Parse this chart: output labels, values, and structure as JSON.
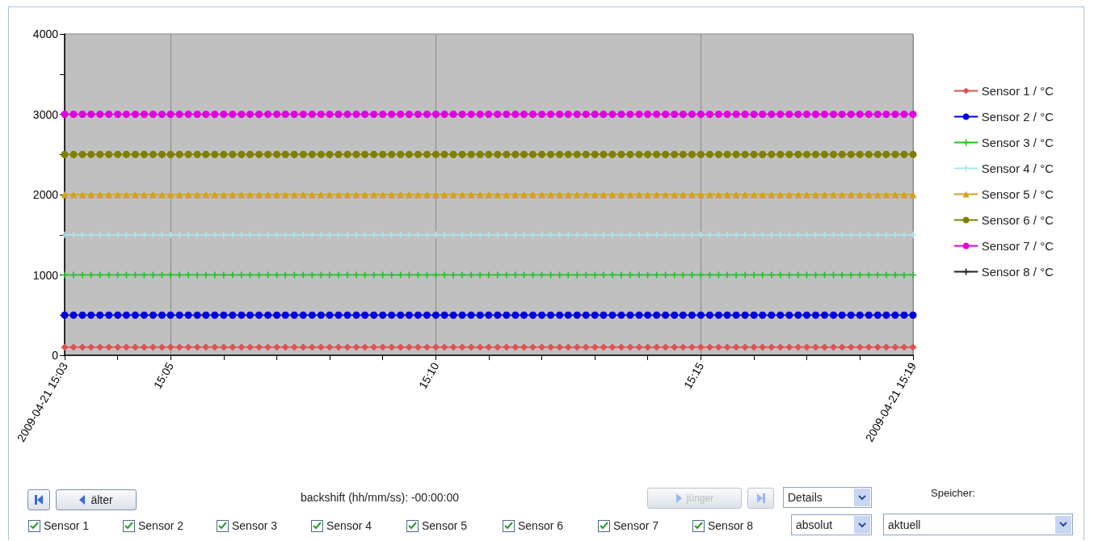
{
  "chart_data": {
    "type": "line",
    "x": [
      15.05,
      15.0528,
      15.0556,
      15.0583,
      15.0611,
      15.0639,
      15.0667,
      15.0694,
      15.0722,
      15.075,
      15.0778,
      15.0806,
      15.0833,
      15.0861,
      15.0889,
      15.0917,
      15.0944,
      15.0972,
      15.1,
      15.1028,
      15.1056,
      15.1083,
      15.1111,
      15.1139,
      15.1167,
      15.1194,
      15.1222,
      15.125,
      15.1278,
      15.1306,
      15.1333,
      15.1361,
      15.1389,
      15.1417,
      15.1444,
      15.1472,
      15.15,
      15.1528,
      15.1556,
      15.1583,
      15.1611,
      15.1639,
      15.1667,
      15.1694,
      15.1722,
      15.175,
      15.1778,
      15.1806,
      15.1833,
      15.1861,
      15.1889,
      15.1917,
      15.1944,
      15.1972,
      15.2,
      15.2028,
      15.2056,
      15.2083,
      15.2111,
      15.2139,
      15.2167,
      15.2194,
      15.2222,
      15.225,
      15.2278,
      15.2306,
      15.2333,
      15.2361,
      15.2389,
      15.2417,
      15.2444,
      15.2472,
      15.25,
      15.2528,
      15.2556,
      15.2583,
      15.2611,
      15.2639,
      15.2667,
      15.2694,
      15.2722,
      15.275,
      15.2778,
      15.2806,
      15.2833,
      15.2861,
      15.2889,
      15.2917,
      15.2944,
      15.2972,
      15.3,
      15.3028,
      15.3056,
      15.3083,
      15.3111,
      15.3139,
      15.3167
    ],
    "series": [
      {
        "name": "Sensor 1 / °C",
        "color": "#e05050",
        "marker": "diamond",
        "values": [
          100,
          100,
          100,
          100,
          100,
          100,
          100,
          100,
          100,
          100,
          100,
          100,
          100,
          100,
          100,
          100,
          100,
          100,
          100,
          100,
          100,
          100,
          100,
          100,
          100,
          100,
          100,
          100,
          100,
          100,
          100,
          100,
          100,
          100,
          100,
          100,
          100,
          100,
          100,
          100,
          100,
          100,
          100,
          100,
          100,
          100,
          100,
          100,
          100,
          100,
          100,
          100,
          100,
          100,
          100,
          100,
          100,
          100,
          100,
          100,
          100,
          100,
          100,
          100,
          100,
          100,
          100,
          100,
          100,
          100,
          100,
          100,
          100,
          100,
          100,
          100,
          100,
          100,
          100,
          100,
          100,
          100,
          100,
          100,
          100,
          100,
          100,
          100,
          100,
          100,
          100,
          100,
          100,
          100,
          100,
          100,
          100
        ]
      },
      {
        "name": "Sensor 2 / °C",
        "color": "#0000e0",
        "marker": "circle",
        "values": [
          500,
          500,
          500,
          500,
          500,
          500,
          500,
          500,
          500,
          500,
          500,
          500,
          500,
          500,
          500,
          500,
          500,
          500,
          500,
          500,
          500,
          500,
          500,
          500,
          500,
          500,
          500,
          500,
          500,
          500,
          500,
          500,
          500,
          500,
          500,
          500,
          500,
          500,
          500,
          500,
          500,
          500,
          500,
          500,
          500,
          500,
          500,
          500,
          500,
          500,
          500,
          500,
          500,
          500,
          500,
          500,
          500,
          500,
          500,
          500,
          500,
          500,
          500,
          500,
          500,
          500,
          500,
          500,
          500,
          500,
          500,
          500,
          500,
          500,
          500,
          500,
          500,
          500,
          500,
          500,
          500,
          500,
          500,
          500,
          500,
          500,
          500,
          500,
          500,
          500,
          500,
          500,
          500,
          500,
          500,
          500,
          500
        ]
      },
      {
        "name": "Sensor 3 / °C",
        "color": "#20c020",
        "marker": "cross",
        "values": [
          1000,
          1000,
          1000,
          1000,
          1000,
          1000,
          1000,
          1000,
          1000,
          1000,
          1000,
          1000,
          1000,
          1000,
          1000,
          1000,
          1000,
          1000,
          1000,
          1000,
          1000,
          1000,
          1000,
          1000,
          1000,
          1000,
          1000,
          1000,
          1000,
          1000,
          1000,
          1000,
          1000,
          1000,
          1000,
          1000,
          1000,
          1000,
          1000,
          1000,
          1000,
          1000,
          1000,
          1000,
          1000,
          1000,
          1000,
          1000,
          1000,
          1000,
          1000,
          1000,
          1000,
          1000,
          1000,
          1000,
          1000,
          1000,
          1000,
          1000,
          1000,
          1000,
          1000,
          1000,
          1000,
          1000,
          1000,
          1000,
          1000,
          1000,
          1000,
          1000,
          1000,
          1000,
          1000,
          1000,
          1000,
          1000,
          1000,
          1000,
          1000,
          1000,
          1000,
          1000,
          1000,
          1000,
          1000,
          1000,
          1000,
          1000,
          1000,
          1000,
          1000,
          1000,
          1000,
          1000,
          1000
        ]
      },
      {
        "name": "Sensor 4 / °C",
        "color": "#a8e8f0",
        "marker": "cross",
        "values": [
          1500,
          1500,
          1500,
          1500,
          1500,
          1500,
          1500,
          1500,
          1500,
          1500,
          1500,
          1500,
          1500,
          1500,
          1500,
          1500,
          1500,
          1500,
          1500,
          1500,
          1500,
          1500,
          1500,
          1500,
          1500,
          1500,
          1500,
          1500,
          1500,
          1500,
          1500,
          1500,
          1500,
          1500,
          1500,
          1500,
          1500,
          1500,
          1500,
          1500,
          1500,
          1500,
          1500,
          1500,
          1500,
          1500,
          1500,
          1500,
          1500,
          1500,
          1500,
          1500,
          1500,
          1500,
          1500,
          1500,
          1500,
          1500,
          1500,
          1500,
          1500,
          1500,
          1500,
          1500,
          1500,
          1500,
          1500,
          1500,
          1500,
          1500,
          1500,
          1500,
          1500,
          1500,
          1500,
          1500,
          1500,
          1500,
          1500,
          1500,
          1500,
          1500,
          1500,
          1500,
          1500,
          1500,
          1500,
          1500,
          1500,
          1500,
          1500,
          1500,
          1500,
          1500,
          1500,
          1500,
          1500
        ]
      },
      {
        "name": "Sensor 5 / °C",
        "color": "#d4a020",
        "marker": "triangle",
        "values": [
          2000,
          2000,
          2000,
          2000,
          2000,
          2000,
          2000,
          2000,
          2000,
          2000,
          2000,
          2000,
          2000,
          2000,
          2000,
          2000,
          2000,
          2000,
          2000,
          2000,
          2000,
          2000,
          2000,
          2000,
          2000,
          2000,
          2000,
          2000,
          2000,
          2000,
          2000,
          2000,
          2000,
          2000,
          2000,
          2000,
          2000,
          2000,
          2000,
          2000,
          2000,
          2000,
          2000,
          2000,
          2000,
          2000,
          2000,
          2000,
          2000,
          2000,
          2000,
          2000,
          2000,
          2000,
          2000,
          2000,
          2000,
          2000,
          2000,
          2000,
          2000,
          2000,
          2000,
          2000,
          2000,
          2000,
          2000,
          2000,
          2000,
          2000,
          2000,
          2000,
          2000,
          2000,
          2000,
          2000,
          2000,
          2000,
          2000,
          2000,
          2000,
          2000,
          2000,
          2000,
          2000,
          2000,
          2000,
          2000,
          2000,
          2000,
          2000,
          2000,
          2000,
          2000,
          2000,
          2000,
          2000
        ]
      },
      {
        "name": "Sensor 6 / °C",
        "color": "#808000",
        "marker": "circle",
        "values": [
          2500,
          2500,
          2500,
          2500,
          2500,
          2500,
          2500,
          2500,
          2500,
          2500,
          2500,
          2500,
          2500,
          2500,
          2500,
          2500,
          2500,
          2500,
          2500,
          2500,
          2500,
          2500,
          2500,
          2500,
          2500,
          2500,
          2500,
          2500,
          2500,
          2500,
          2500,
          2500,
          2500,
          2500,
          2500,
          2500,
          2500,
          2500,
          2500,
          2500,
          2500,
          2500,
          2500,
          2500,
          2500,
          2500,
          2500,
          2500,
          2500,
          2500,
          2500,
          2500,
          2500,
          2500,
          2500,
          2500,
          2500,
          2500,
          2500,
          2500,
          2500,
          2500,
          2500,
          2500,
          2500,
          2500,
          2500,
          2500,
          2500,
          2500,
          2500,
          2500,
          2500,
          2500,
          2500,
          2500,
          2500,
          2500,
          2500,
          2500,
          2500,
          2500,
          2500,
          2500,
          2500,
          2500,
          2500,
          2500,
          2500,
          2500,
          2500,
          2500,
          2500,
          2500,
          2500,
          2500,
          2500
        ]
      },
      {
        "name": "Sensor 7 / °C",
        "color": "#e000e0",
        "marker": "circle",
        "values": [
          3000,
          3000,
          3000,
          3000,
          3000,
          3000,
          3000,
          3000,
          3000,
          3000,
          3000,
          3000,
          3000,
          3000,
          3000,
          3000,
          3000,
          3000,
          3000,
          3000,
          3000,
          3000,
          3000,
          3000,
          3000,
          3000,
          3000,
          3000,
          3000,
          3000,
          3000,
          3000,
          3000,
          3000,
          3000,
          3000,
          3000,
          3000,
          3000,
          3000,
          3000,
          3000,
          3000,
          3000,
          3000,
          3000,
          3000,
          3000,
          3000,
          3000,
          3000,
          3000,
          3000,
          3000,
          3000,
          3000,
          3000,
          3000,
          3000,
          3000,
          3000,
          3000,
          3000,
          3000,
          3000,
          3000,
          3000,
          3000,
          3000,
          3000,
          3000,
          3000,
          3000,
          3000,
          3000,
          3000,
          3000,
          3000,
          3000,
          3000,
          3000,
          3000,
          3000,
          3000,
          3000,
          3000,
          3000,
          3000,
          3000,
          3000,
          3000,
          3000,
          3000,
          3000,
          3000,
          3000,
          3000
        ]
      },
      {
        "name": "Sensor 8 / °C",
        "color": "#202020",
        "marker": "cross",
        "values": [
          null,
          null,
          null,
          null,
          null,
          null,
          null,
          null,
          null,
          null,
          null,
          null,
          null,
          null,
          null,
          null,
          null,
          null,
          null,
          null,
          null,
          null,
          null,
          null,
          null,
          null,
          null,
          null,
          null,
          null,
          null,
          null,
          null,
          null,
          null,
          null,
          null,
          null,
          null,
          null,
          null,
          null,
          null,
          null,
          null,
          null,
          null,
          null,
          null,
          null,
          null,
          null,
          null,
          null,
          null,
          null,
          null,
          null,
          null,
          null,
          null,
          null,
          null,
          null,
          null,
          null,
          null,
          null,
          null,
          null,
          null,
          null,
          null,
          null,
          null,
          null,
          null,
          null,
          null,
          null,
          null,
          null,
          null,
          null,
          null,
          null,
          null,
          null,
          null,
          null,
          null,
          null,
          null,
          null,
          null,
          null,
          null
        ]
      }
    ],
    "xlim": [
      15.05,
      15.3167
    ],
    "xticks": [
      {
        "value": 15.05,
        "label": "2009-04-21 15:03"
      },
      {
        "value": 15.0667,
        "label": null
      },
      {
        "value": 15.0833,
        "label": "15:05"
      },
      {
        "value": 15.1,
        "label": null
      },
      {
        "value": 15.1167,
        "label": null
      },
      {
        "value": 15.1333,
        "label": null
      },
      {
        "value": 15.15,
        "label": null
      },
      {
        "value": 15.1667,
        "label": "15:10"
      },
      {
        "value": 15.1833,
        "label": null
      },
      {
        "value": 15.2,
        "label": null
      },
      {
        "value": 15.2167,
        "label": null
      },
      {
        "value": 15.2333,
        "label": null
      },
      {
        "value": 15.25,
        "label": "15:15"
      },
      {
        "value": 15.2667,
        "label": null
      },
      {
        "value": 15.2833,
        "label": null
      },
      {
        "value": 15.3,
        "label": null
      },
      {
        "value": 15.3167,
        "label": "2009-04-21 15:19"
      }
    ],
    "ylim": [
      0,
      4000
    ],
    "yticks": [
      0,
      {
        "value": 500,
        "label": null
      },
      1000,
      {
        "value": 1500,
        "label": null
      },
      2000,
      {
        "value": 2500,
        "label": null
      },
      3000,
      {
        "value": 3500,
        "label": null
      },
      4000
    ],
    "grid": "x",
    "legend": "right",
    "line_style": "solid",
    "annotations": [
      "backshift (hh/mm/ss): -00:00:00",
      "älter",
      "jünger",
      "Details",
      "Speicher:",
      "absolut",
      "aktuell",
      "Sensor 1",
      "Sensor 2",
      "Sensor 3",
      "Sensor 4",
      "Sensor 5",
      "Sensor 6",
      "Sensor 7",
      "Sensor 8"
    ]
  }
}
